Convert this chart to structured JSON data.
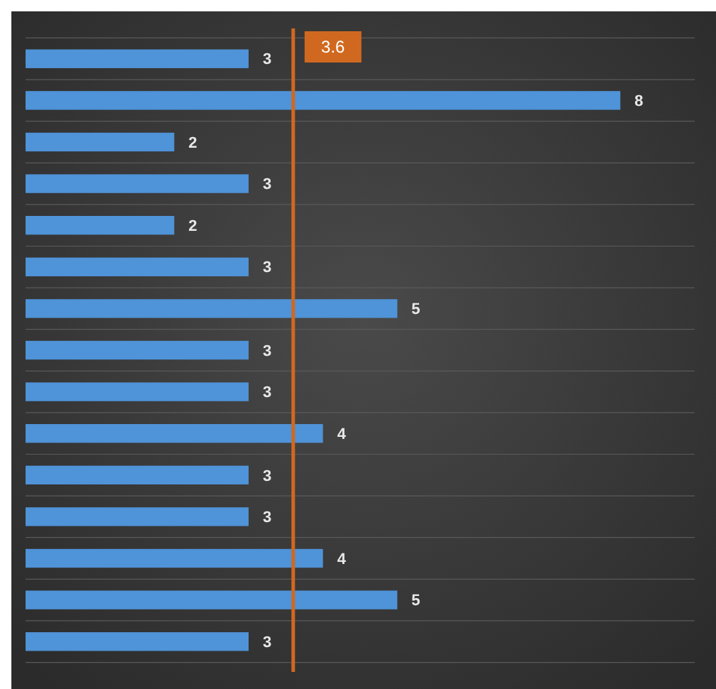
{
  "chart_data": {
    "type": "bar",
    "orientation": "horizontal",
    "categories": [
      null,
      null,
      null,
      null,
      null,
      null,
      null,
      null,
      null,
      null,
      null,
      null,
      null,
      null,
      null
    ],
    "values": [
      3,
      8,
      2,
      3,
      2,
      3,
      5,
      3,
      3,
      4,
      3,
      3,
      4,
      5,
      3
    ],
    "color": "#4f93d8",
    "data_labels": true,
    "xlim": [
      0,
      9
    ],
    "ref_lines": [
      {
        "axis": "x",
        "value": 3.6,
        "label": "3.6",
        "color": "#d0691f"
      }
    ]
  }
}
